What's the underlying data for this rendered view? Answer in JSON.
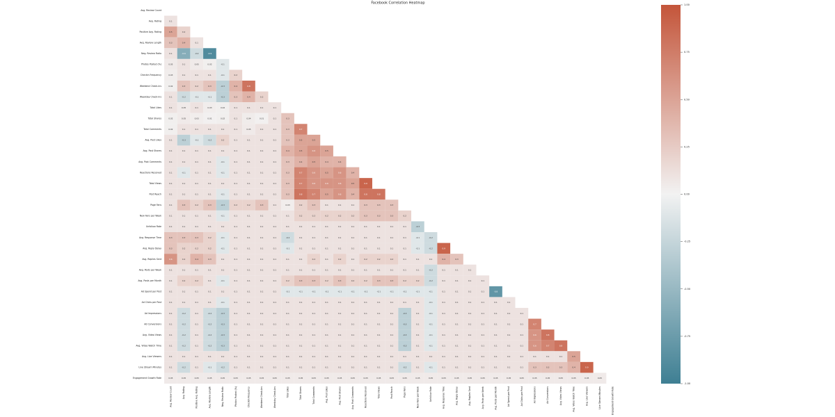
{
  "chart_data": {
    "type": "heatmap",
    "title": "Facebook Correlation Heatmap",
    "categories": [
      "Avg. Review Count",
      "Avg. Rating",
      "Positive Avg. Rating",
      "Avg. Review Length",
      "Neg. Review Ratio",
      "Photos Posted (%)",
      "Checkin Frequency",
      "Weekend Check-ins",
      "Weekday Check-ins",
      "Total Likes",
      "Total Shares",
      "Total Comments",
      "Avg. Post Likes",
      "Avg. Post Shares",
      "Avg. Post Comments",
      "Reactions Received",
      "Total Views",
      "Post Reach",
      "Page Fans",
      "New Fans per Week",
      "Unfollow Rate",
      "Avg. Response Time",
      "Avg. Reply Delay",
      "Avg. Replies Sent",
      "Avg. Posts per Week",
      "Avg. Posts per Month",
      "Ad Spend per Post",
      "Ad Clicks per Post",
      "Ad Impressions",
      "Ad Conversions",
      "Avg. Video Views",
      "Avg. Video Watch Time",
      "Avg. Live Viewers",
      "Live Stream Minutes",
      "Engagement Growth Rate"
    ],
    "values": [
      [],
      [
        0.1
      ],
      [
        0.5,
        0.2
      ],
      [
        0.3,
        0.4,
        0.1
      ],
      [
        0.1,
        -0.6,
        -0.2,
        -0.9
      ],
      [
        0.05,
        0.1,
        0.05,
        0.02,
        -0.1
      ],
      [
        0.03,
        0.1,
        0.1,
        0.1,
        -0.1,
        0.2
      ],
      [
        0.02,
        0.3,
        0.2,
        0.3,
        -0.3,
        0.4,
        0.8
      ],
      [
        0.1,
        -0.2,
        -0.1,
        -0.1,
        -0.3,
        0.3,
        0.4,
        0.2
      ],
      [
        0.1,
        0.05,
        0.1,
        0.03,
        0.02,
        0.1,
        0.1,
        0.1,
        0.1
      ],
      [
        0.02,
        0.05,
        0.03,
        0.01,
        0.02,
        0.1,
        0.04,
        0.01,
        0.1,
        0.3
      ],
      [
        0.02,
        0.1,
        0.1,
        0.1,
        0.1,
        0.1,
        0.05,
        0.1,
        0.1,
        0.3,
        0.7
      ],
      [
        0.1,
        -0.3,
        -0.1,
        -0.2,
        0.2,
        0.1,
        0.1,
        0.1,
        0.1,
        0.3,
        0.5,
        0.5
      ],
      [
        0.1,
        0.1,
        0.1,
        0.1,
        0.1,
        0.1,
        0.1,
        0.1,
        0.1,
        0.4,
        0.5,
        0.6,
        0.5
      ],
      [
        0.1,
        0.1,
        0.1,
        0.1,
        -0.1,
        0.1,
        0.1,
        0.1,
        0.1,
        0.3,
        0.4,
        0.5,
        0.4,
        0.4
      ],
      [
        0.1,
        -0.1,
        0.1,
        0.1,
        -0.1,
        0.1,
        0.1,
        0.1,
        0.1,
        0.3,
        0.7,
        0.6,
        0.5,
        0.6,
        0.4
      ],
      [
        0.1,
        0.1,
        0.1,
        0.1,
        0.1,
        0.1,
        0.1,
        0.1,
        0.1,
        0.3,
        0.7,
        0.6,
        0.6,
        0.6,
        0.5,
        0.9
      ],
      [
        0.1,
        0.1,
        0.1,
        0.1,
        -0.1,
        0.1,
        0.1,
        0.1,
        0.1,
        0.3,
        0.8,
        0.7,
        0.5,
        0.6,
        0.4,
        0.8,
        0.8
      ],
      [
        0.1,
        0.3,
        0.2,
        0.3,
        -0.3,
        0.2,
        0.2,
        0.3,
        0.1,
        0.03,
        0.2,
        0.3,
        0.1,
        0.1,
        0.1,
        0.3,
        0.3,
        0.3
      ],
      [
        0.1,
        0.1,
        0.1,
        0.1,
        -0.1,
        0.1,
        0.1,
        0.1,
        0.1,
        0.1,
        0.2,
        0.2,
        0.2,
        0.2,
        0.2,
        0.3,
        0.3,
        0.3,
        0.2
      ],
      [
        0.1,
        0.1,
        0.1,
        0.1,
        0.1,
        0.1,
        0.1,
        0.1,
        0.1,
        0.1,
        0.1,
        0.1,
        0.1,
        0.1,
        0.1,
        0.1,
        0.1,
        0.1,
        0.1,
        -0.3
      ],
      [
        0.3,
        0.3,
        0.3,
        0.2,
        -0.1,
        0.1,
        0.1,
        0.1,
        0.1,
        -0.2,
        0.1,
        0.1,
        0.1,
        0.1,
        0.1,
        0.1,
        0.1,
        0.1,
        0.1,
        -0.1,
        -0.2
      ],
      [
        0.3,
        0.2,
        0.2,
        0.2,
        -0.1,
        0.1,
        0.1,
        0.1,
        0.1,
        -0.1,
        0.1,
        0.1,
        0.1,
        0.1,
        0.1,
        0.1,
        0.1,
        0.1,
        0.1,
        -0.1,
        -0.2,
        0.9
      ],
      [
        0.6,
        0.2,
        0.4,
        0.3,
        0.1,
        0.1,
        0.1,
        0.1,
        0.1,
        0.1,
        0.1,
        0.2,
        0.1,
        0.2,
        0.1,
        0.2,
        0.2,
        0.2,
        0.1,
        0.1,
        0.1,
        0.4,
        0.3
      ],
      [
        0.1,
        0.1,
        0.1,
        0.1,
        0.1,
        0.1,
        0.1,
        0.1,
        0.1,
        0.1,
        0.1,
        0.1,
        0.1,
        0.1,
        0.1,
        0.1,
        0.1,
        0.1,
        0.1,
        0.1,
        -0.2,
        0.1,
        0.1,
        0.1
      ],
      [
        0.1,
        0.2,
        0.2,
        0.1,
        -0.1,
        0.1,
        0.1,
        0.1,
        0.1,
        0.2,
        0.3,
        0.3,
        0.2,
        0.3,
        0.2,
        0.2,
        0.3,
        0.3,
        0.2,
        0.2,
        -0.2,
        0.1,
        0.1,
        0.1,
        0.1
      ],
      [
        0.1,
        0.1,
        0.1,
        0.1,
        0.1,
        0.1,
        0.1,
        0.1,
        0.1,
        -0.1,
        -0.1,
        -0.1,
        -0.1,
        -0.1,
        -0.1,
        -0.1,
        -0.1,
        -0.1,
        -0.1,
        -0.1,
        -0.1,
        0.1,
        0.1,
        0.1,
        0.1,
        -0.8
      ],
      [
        0.1,
        0.1,
        0.1,
        0.1,
        -0.1,
        0.1,
        0.1,
        0.1,
        0.1,
        0.1,
        0.1,
        0.1,
        0.1,
        0.1,
        0.1,
        0.1,
        0.1,
        0.1,
        0.1,
        0.1,
        -0.1,
        0.1,
        0.1,
        0.1,
        0.1,
        0.1,
        0.1
      ],
      [
        0.1,
        -0.2,
        0.1,
        -0.2,
        -0.3,
        0.1,
        0.1,
        0.1,
        0.1,
        0.1,
        0.1,
        0.1,
        0.1,
        0.1,
        0.1,
        0.1,
        0.1,
        0.1,
        -0.3,
        0.1,
        -0.1,
        0.1,
        0.1,
        0.1,
        0.1,
        0.1,
        0.1,
        0.1
      ],
      [
        0.1,
        -0.2,
        0.1,
        -0.2,
        -0.3,
        0.1,
        0.1,
        0.1,
        0.1,
        0.1,
        0.1,
        0.1,
        0.1,
        0.1,
        0.1,
        0.1,
        0.1,
        0.1,
        -0.3,
        0.1,
        -0.1,
        0.1,
        0.1,
        0.1,
        0.1,
        0.1,
        0.1,
        0.1,
        0.7
      ],
      [
        0.1,
        -0.2,
        0.1,
        -0.2,
        -0.3,
        0.1,
        0.1,
        0.1,
        0.1,
        0.1,
        0.1,
        0.1,
        0.1,
        0.1,
        0.1,
        0.1,
        0.1,
        0.1,
        -0.3,
        0.1,
        -0.1,
        0.1,
        0.1,
        0.1,
        0.1,
        0.1,
        0.1,
        0.1,
        0.6,
        0.8
      ],
      [
        0.1,
        -0.2,
        0.1,
        -0.2,
        -0.3,
        0.1,
        0.1,
        0.1,
        0.1,
        0.1,
        0.1,
        0.1,
        0.1,
        0.1,
        0.1,
        0.1,
        0.1,
        0.1,
        -0.3,
        0.1,
        -0.1,
        0.1,
        0.1,
        0.1,
        0.1,
        0.1,
        0.1,
        0.1,
        0.6,
        0.7,
        0.8
      ],
      [
        0.1,
        0.1,
        0.1,
        0.1,
        0.1,
        0.1,
        0.1,
        0.1,
        0.1,
        0.1,
        0.1,
        0.1,
        0.1,
        0.1,
        0.1,
        0.1,
        0.1,
        0.1,
        0.1,
        0.1,
        0.1,
        0.1,
        0.1,
        0.1,
        0.1,
        0.1,
        0.1,
        0.1,
        0.1,
        0.1,
        0.1,
        0.5
      ],
      [
        0.1,
        -0.2,
        0.1,
        -0.1,
        -0.2,
        0.1,
        0.1,
        0.1,
        0.1,
        0.1,
        0.1,
        0.1,
        0.1,
        0.1,
        0.1,
        0.1,
        0.1,
        0.1,
        -0.2,
        0.1,
        -0.1,
        0.1,
        0.1,
        0.1,
        0.1,
        0.1,
        0.1,
        0.1,
        0.3,
        0.3,
        0.3,
        0.4,
        0.9
      ],
      [
        0.05,
        0.05,
        0.05,
        0.05,
        0.05,
        0.05,
        0.05,
        0.05,
        0.05,
        0.05,
        0.05,
        0.05,
        0.05,
        0.05,
        0.05,
        0.05,
        0.05,
        0.05,
        0.05,
        0.05,
        0.05,
        0.05,
        0.05,
        0.05,
        0.05,
        0.05,
        0.05,
        0.05,
        0.05,
        0.05,
        0.05,
        0.05,
        0.05,
        0.05
      ]
    ],
    "colors": [
      "#3e7f93",
      "#f2f2f2",
      "#c4553a"
    ],
    "clim": [
      -1,
      1
    ],
    "cticks": [
      {
        "value": -1,
        "label": "-1.00"
      },
      {
        "value": -0.75,
        "label": "-0.75"
      },
      {
        "value": -0.5,
        "label": "-0.50"
      },
      {
        "value": -0.25,
        "label": "-0.25"
      },
      {
        "value": 0,
        "label": "0.00"
      },
      {
        "value": 0.25,
        "label": "0.25"
      },
      {
        "value": 0.5,
        "label": "0.50"
      },
      {
        "value": 0.75,
        "label": "0.75"
      },
      {
        "value": 1,
        "label": "1.00"
      }
    ]
  }
}
